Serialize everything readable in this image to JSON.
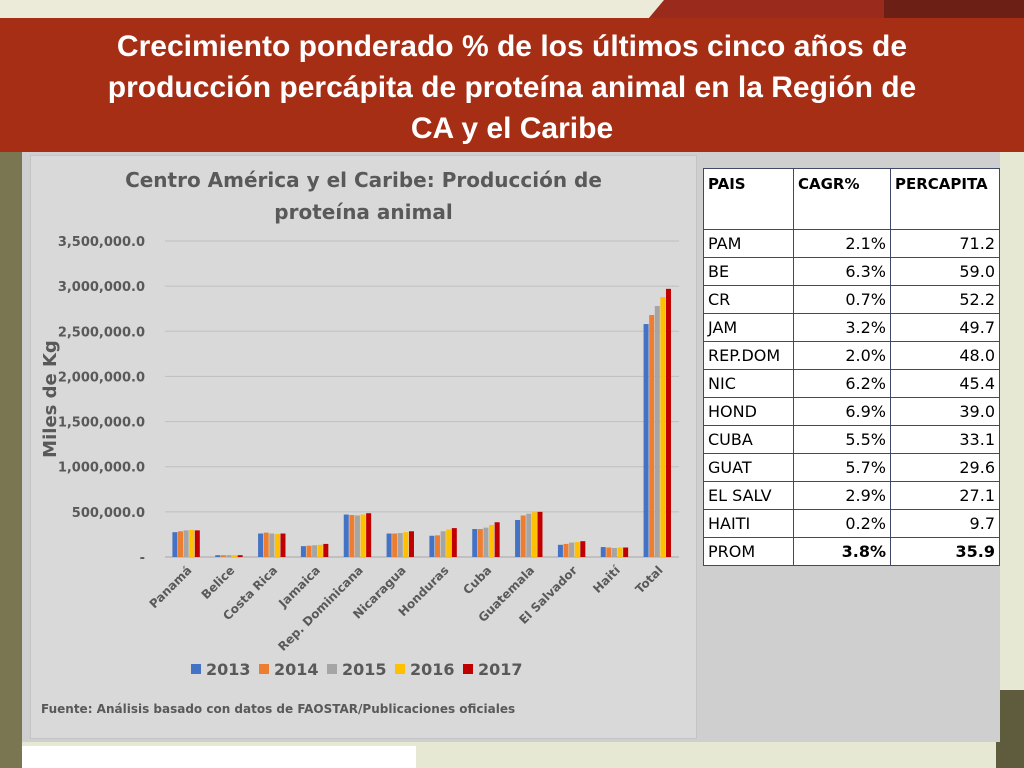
{
  "header": {
    "title_lines": [
      "Crecimiento ponderado % de los últimos cinco años de",
      "producción percápita de proteína animal en la Región de",
      "CA y el Caribe"
    ]
  },
  "chart_data": {
    "type": "bar",
    "title_lines": [
      "Centro América y el Caribe: Producción de",
      "proteína animal"
    ],
    "xlabel": "",
    "ylabel": "Miles de Kg",
    "ylim": [
      0,
      3500000
    ],
    "yticks": [
      0,
      500000,
      1000000,
      1500000,
      2000000,
      2500000,
      3000000,
      3500000
    ],
    "ytick_labels": [
      "-",
      "500,000.0",
      "1,000,000.0",
      "1,500,000.0",
      "2,000,000.0",
      "2,500,000.0",
      "3,000,000.0",
      "3,500,000.0"
    ],
    "grid": true,
    "legend_position": "bottom",
    "categories": [
      "Panamá",
      "Belice",
      "Costa Rica",
      "Jamaica",
      "Rep. Dominicana",
      "Nicaragua",
      "Honduras",
      "Cuba",
      "Guatemala",
      "El Salvador",
      "Haití",
      "Total"
    ],
    "series": [
      {
        "name": "2013",
        "color": "#4472c4",
        "values": [
          275000,
          20000,
          260000,
          120000,
          470000,
          260000,
          235000,
          310000,
          410000,
          135000,
          110000,
          2580000
        ]
      },
      {
        "name": "2014",
        "color": "#ed7d31",
        "values": [
          285000,
          20000,
          270000,
          125000,
          465000,
          260000,
          240000,
          310000,
          460000,
          145000,
          105000,
          2680000
        ]
      },
      {
        "name": "2015",
        "color": "#a5a5a5",
        "values": [
          295000,
          20000,
          260000,
          130000,
          460000,
          265000,
          285000,
          325000,
          480000,
          160000,
          100000,
          2780000
        ]
      },
      {
        "name": "2016",
        "color": "#ffc000",
        "values": [
          300000,
          20000,
          255000,
          135000,
          470000,
          275000,
          305000,
          355000,
          495000,
          165000,
          105000,
          2880000
        ]
      },
      {
        "name": "2017",
        "color": "#c00000",
        "values": [
          295000,
          20000,
          260000,
          145000,
          485000,
          285000,
          320000,
          385000,
          500000,
          175000,
          105000,
          2970000
        ]
      }
    ],
    "source": "Fuente: Análisis basado con datos de FAOSTAR/Publicaciones oficiales"
  },
  "table": {
    "headers": [
      "PAIS",
      "CAGR%",
      "PERCAPITA"
    ],
    "rows": [
      {
        "pais": "PAM",
        "cagr": "2.1%",
        "percapita": "71.2"
      },
      {
        "pais": "BE",
        "cagr": "6.3%",
        "percapita": "59.0"
      },
      {
        "pais": "CR",
        "cagr": "0.7%",
        "percapita": "52.2"
      },
      {
        "pais": "JAM",
        "cagr": "3.2%",
        "percapita": "49.7"
      },
      {
        "pais": "REP.DOM",
        "cagr": "2.0%",
        "percapita": "48.0"
      },
      {
        "pais": "NIC",
        "cagr": "6.2%",
        "percapita": "45.4"
      },
      {
        "pais": "HOND",
        "cagr": "6.9%",
        "percapita": "39.0"
      },
      {
        "pais": "CUBA",
        "cagr": "5.5%",
        "percapita": "33.1"
      },
      {
        "pais": "GUAT",
        "cagr": "5.7%",
        "percapita": "29.6"
      },
      {
        "pais": "EL SALV",
        "cagr": "2.9%",
        "percapita": "27.1"
      },
      {
        "pais": "HAITI",
        "cagr": "0.2%",
        "percapita": "9.7"
      },
      {
        "pais": "PROM",
        "cagr": "3.8%",
        "percapita": "35.9"
      }
    ]
  }
}
